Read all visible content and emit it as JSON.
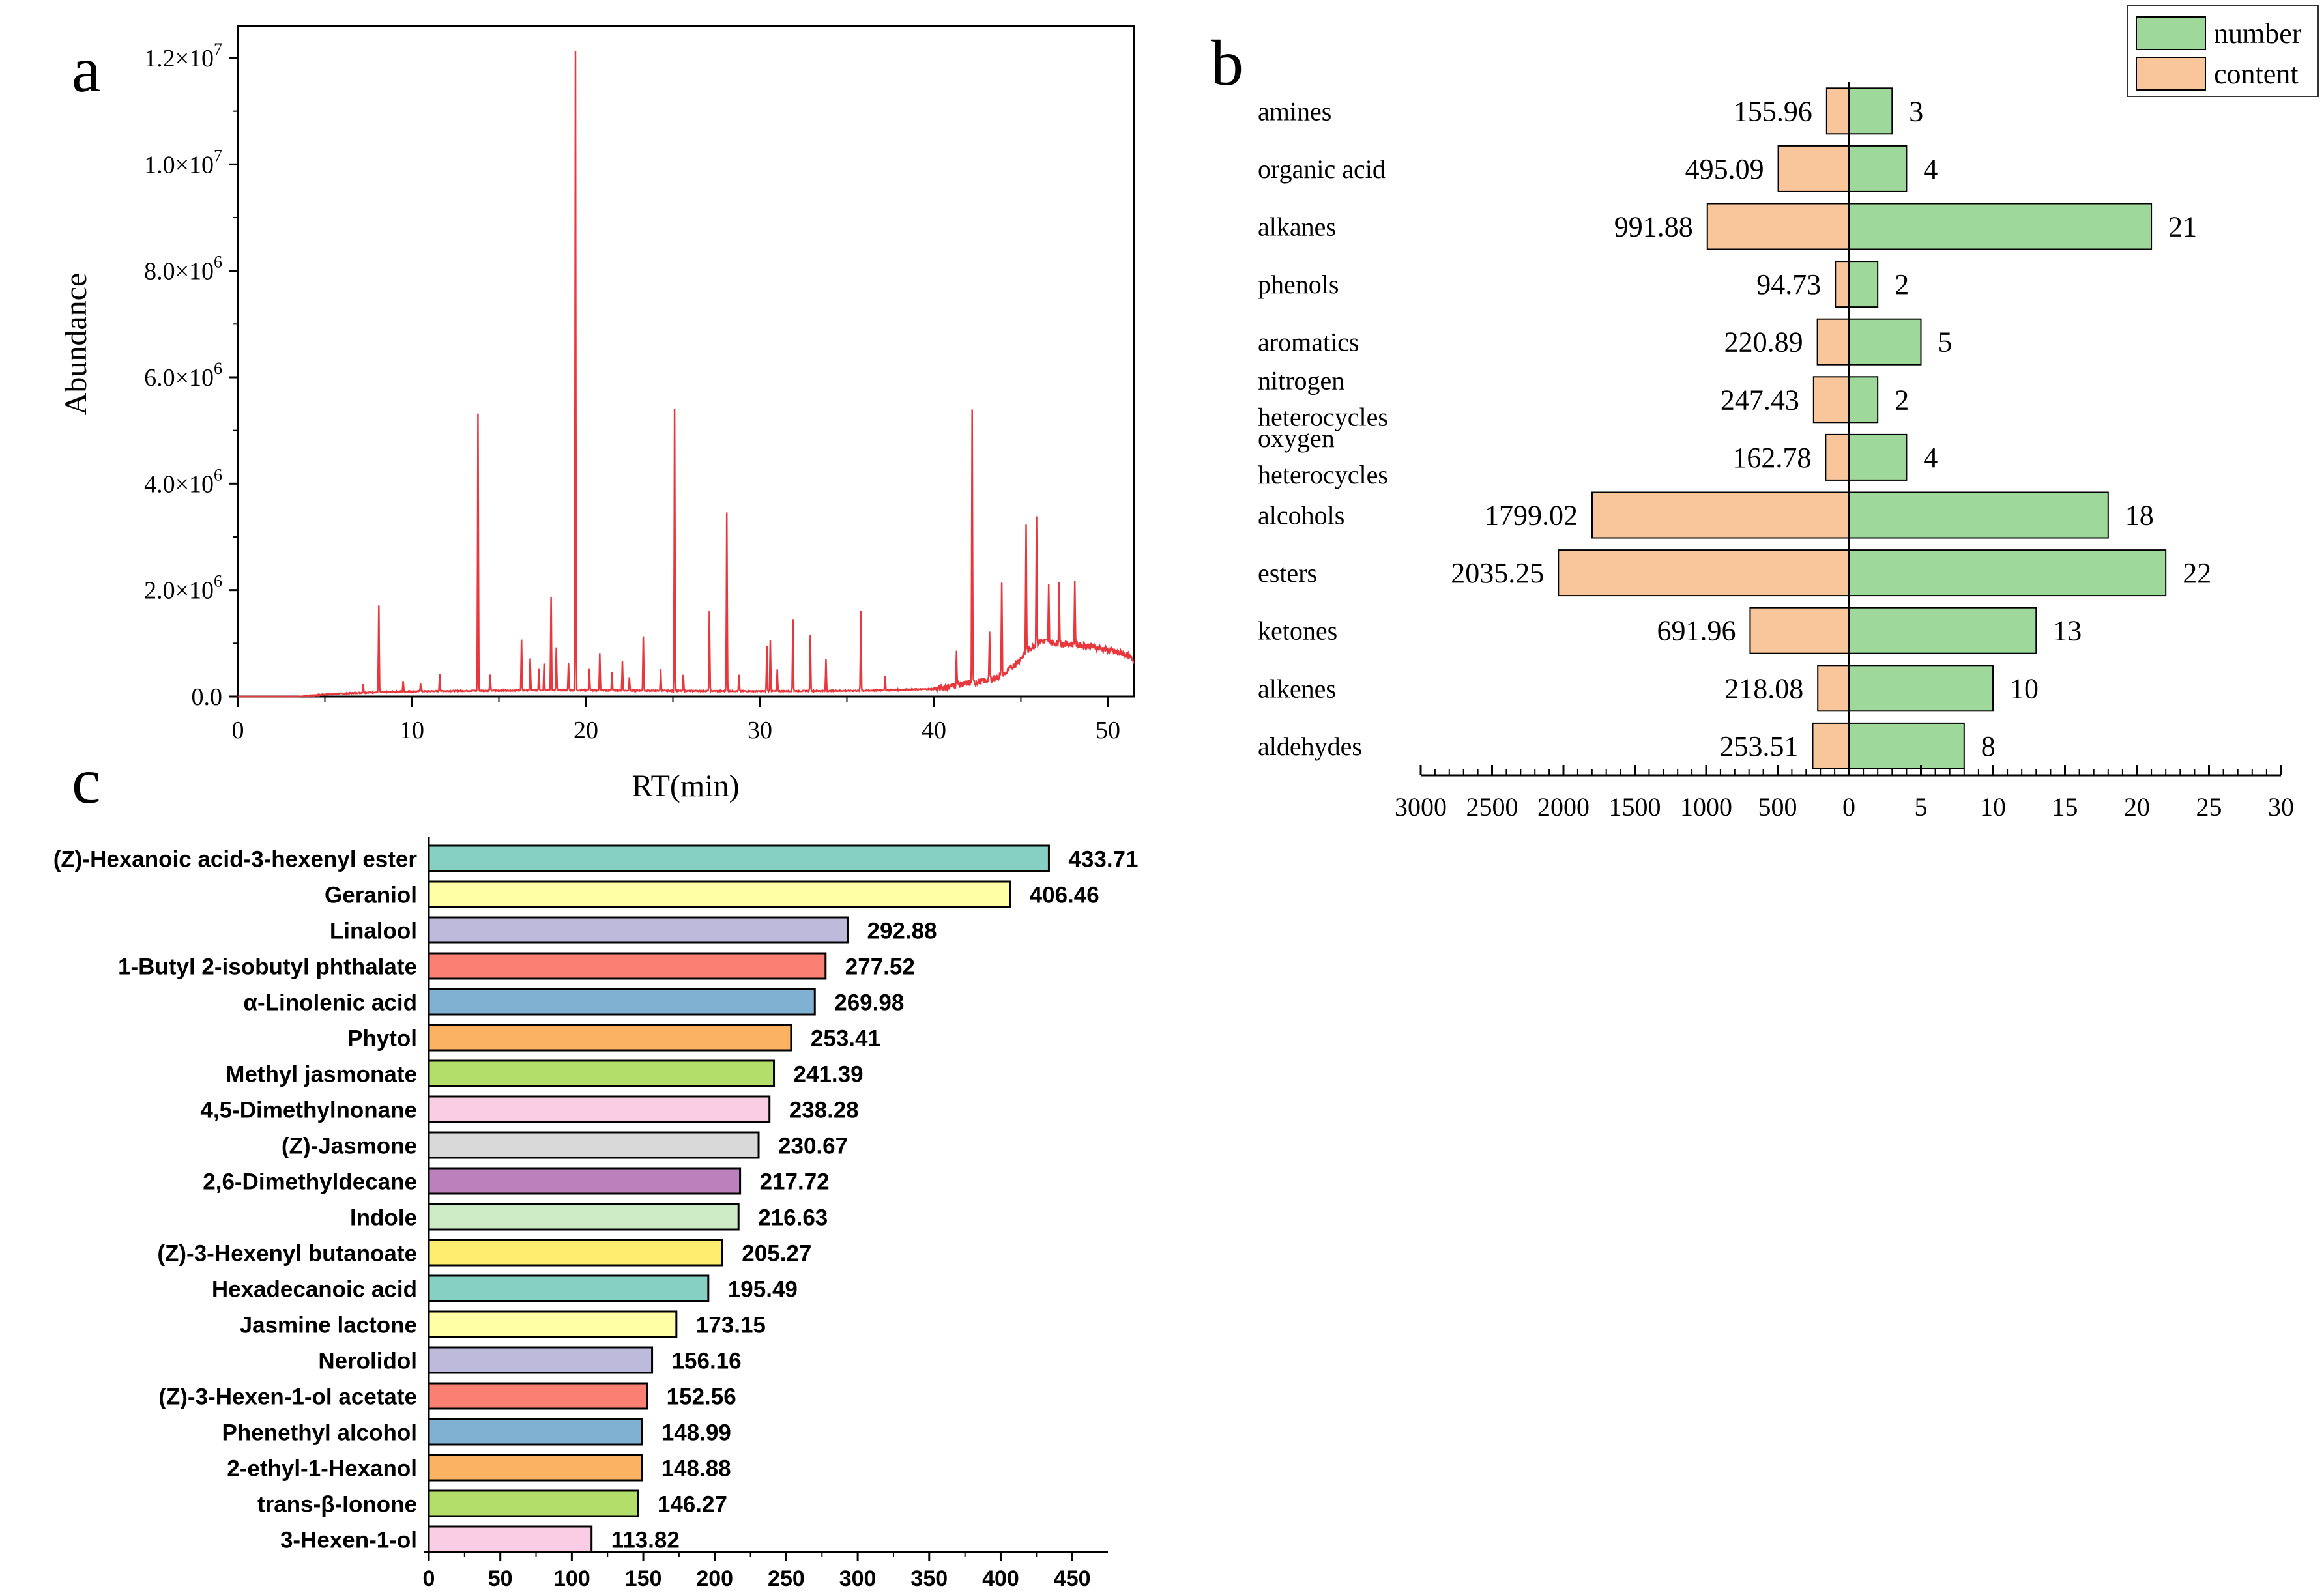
{
  "panel_labels": {
    "a": "a",
    "b": "b",
    "c": "c"
  },
  "chart_data": [
    {
      "id": "a",
      "type": "line",
      "xlabel": "RT(min)",
      "ylabel": "Abundance",
      "xlim": [
        0,
        51.5
      ],
      "ylim": [
        0,
        12600000
      ],
      "x_ticks": [
        0,
        10,
        20,
        30,
        40,
        50
      ],
      "x_tick_labels": [
        "0",
        "10",
        "20",
        "30",
        "40",
        "50"
      ],
      "y_ticks": [
        0,
        2000000,
        4000000,
        6000000,
        8000000,
        10000000,
        12000000
      ],
      "y_tick_labels": [
        {
          "base": "0.0",
          "exp": ""
        },
        {
          "base": "2.0×10",
          "exp": "6"
        },
        {
          "base": "4.0×10",
          "exp": "6"
        },
        {
          "base": "6.0×10",
          "exp": "6"
        },
        {
          "base": "8.0×10",
          "exp": "6"
        },
        {
          "base": "1.0×10",
          "exp": "7"
        },
        {
          "base": "1.2×10",
          "exp": "7"
        }
      ],
      "color": "#e8383d",
      "baseline_points": [
        [
          3.5,
          0
        ],
        [
          5,
          40000
        ],
        [
          7,
          70000
        ],
        [
          9,
          90000
        ],
        [
          11,
          100000
        ],
        [
          14,
          110000
        ],
        [
          18,
          120000
        ],
        [
          24,
          110000
        ],
        [
          30,
          100000
        ],
        [
          36,
          110000
        ],
        [
          40,
          140000
        ],
        [
          42,
          250000
        ],
        [
          43,
          300000
        ],
        [
          44,
          400000
        ],
        [
          44.8,
          650000
        ],
        [
          45.5,
          900000
        ],
        [
          46.2,
          1050000
        ],
        [
          47,
          1000000
        ],
        [
          48,
          980000
        ],
        [
          49,
          950000
        ],
        [
          50,
          870000
        ],
        [
          51,
          800000
        ],
        [
          51.5,
          680000
        ]
      ],
      "peaks": [
        [
          7.2,
          160000
        ],
        [
          8.1,
          1620000
        ],
        [
          9.5,
          200000
        ],
        [
          10.5,
          150000
        ],
        [
          11.6,
          320000
        ],
        [
          13.8,
          5200000
        ],
        [
          14.5,
          300000
        ],
        [
          16.3,
          950000
        ],
        [
          16.8,
          600000
        ],
        [
          17.3,
          400000
        ],
        [
          17.6,
          500000
        ],
        [
          18.0,
          1750000
        ],
        [
          18.3,
          800000
        ],
        [
          19.0,
          500000
        ],
        [
          19.4,
          12000000
        ],
        [
          20.2,
          400000
        ],
        [
          20.8,
          700000
        ],
        [
          21.5,
          350000
        ],
        [
          22.1,
          550000
        ],
        [
          22.5,
          250000
        ],
        [
          23.3,
          1020000
        ],
        [
          24.3,
          400000
        ],
        [
          25.1,
          5300000
        ],
        [
          25.6,
          300000
        ],
        [
          27.1,
          1500000
        ],
        [
          28.1,
          3350000
        ],
        [
          28.8,
          300000
        ],
        [
          30.4,
          850000
        ],
        [
          30.6,
          950000
        ],
        [
          31.0,
          400000
        ],
        [
          31.9,
          1350000
        ],
        [
          32.9,
          1050000
        ],
        [
          33.8,
          600000
        ],
        [
          35.8,
          1500000
        ],
        [
          37.2,
          250000
        ],
        [
          41.3,
          650000
        ],
        [
          42.2,
          5100000
        ],
        [
          43.2,
          900000
        ],
        [
          43.9,
          1750000
        ],
        [
          45.3,
          2400000
        ],
        [
          45.9,
          2400000
        ],
        [
          46.6,
          1050000
        ],
        [
          47.2,
          1150000
        ],
        [
          48.1,
          1200000
        ]
      ]
    },
    {
      "id": "b",
      "type": "bar",
      "orientation": "horizontal-butterfly",
      "categories": [
        "amines",
        "organic acid",
        "alkanes",
        "phenols",
        "aromatics",
        "nitrogen heterocycles",
        "oxygen heterocycles",
        "alcohols",
        "esters",
        "ketones",
        "alkenes",
        "aldehydes"
      ],
      "category_lines": [
        [
          "amines"
        ],
        [
          "organic acid"
        ],
        [
          "alkanes"
        ],
        [
          "phenols"
        ],
        [
          "aromatics"
        ],
        [
          "nitrogen",
          "heterocycles"
        ],
        [
          "oxygen",
          "heterocycles"
        ],
        [
          "alcohols"
        ],
        [
          "esters"
        ],
        [
          "ketones"
        ],
        [
          "alkenes"
        ],
        [
          "aldehydes"
        ]
      ],
      "series": [
        {
          "name": "content",
          "color": "#f9c69b",
          "values": [
            155.96,
            495.09,
            991.88,
            94.73,
            220.89,
            247.43,
            162.78,
            1799.02,
            2035.25,
            691.96,
            218.08,
            253.51
          ],
          "labels": [
            "155.96",
            "495.09",
            "991.88",
            "94.73",
            "220.89",
            "247.43",
            "162.78",
            "1799.02",
            "2035.25",
            "691.96",
            "218.08",
            "253.51"
          ]
        },
        {
          "name": "number",
          "color": "#9ed89a",
          "values": [
            3,
            4,
            21,
            2,
            5,
            2,
            4,
            18,
            22,
            13,
            10,
            8
          ],
          "labels": [
            "3",
            "4",
            "21",
            "2",
            "5",
            "2",
            "4",
            "18",
            "22",
            "13",
            "10",
            "8"
          ]
        }
      ],
      "left_ticks": [
        "3000",
        "2500",
        "2000",
        "1500",
        "1000",
        "500"
      ],
      "right_ticks": [
        "0",
        "5",
        "10",
        "15",
        "20",
        "25",
        "30"
      ],
      "left_max": 3000,
      "right_max": 30,
      "legend": [
        {
          "label": "number",
          "color": "#9ed89a"
        },
        {
          "label": "content",
          "color": "#f9c69b"
        }
      ],
      "legend_position": "top-right"
    },
    {
      "id": "c",
      "type": "bar",
      "orientation": "horizontal",
      "categories": [
        "(Z)-Hexanoic acid-3-hexenyl ester",
        "Geraniol",
        "Linalool",
        "1-Butyl 2-isobutyl phthalate",
        "α-Linolenic acid",
        "Phytol",
        "Methyl jasmonate",
        "4,5-Dimethylnonane",
        "(Z)-Jasmone",
        "2,6-Dimethyldecane",
        "Indole",
        "(Z)-3-Hexenyl butanoate",
        "Hexadecanoic acid",
        "Jasmine lactone",
        "Nerolidol",
        "(Z)-3-Hexen-1-ol acetate",
        "Phenethyl alcohol",
        "2-ethyl-1-Hexanol",
        "trans-β-Ionone",
        "3-Hexen-1-ol"
      ],
      "values": [
        433.71,
        406.46,
        292.88,
        277.52,
        269.98,
        253.41,
        241.39,
        238.28,
        230.67,
        217.72,
        216.63,
        205.27,
        195.49,
        173.15,
        156.16,
        152.56,
        148.99,
        148.88,
        146.27,
        113.82
      ],
      "value_labels": [
        "433.71",
        "406.46",
        "292.88",
        "277.52",
        "269.98",
        "253.41",
        "241.39",
        "238.28",
        "230.67",
        "217.72",
        "216.63",
        "205.27",
        "195.49",
        "173.15",
        "156.16",
        "152.56",
        "148.99",
        "148.88",
        "146.27",
        "113.82"
      ],
      "colors": [
        "#86d0c3",
        "#ffffa6",
        "#bdbadb",
        "#f98072",
        "#80b1d3",
        "#fbb263",
        "#b2de69",
        "#fbcde5",
        "#d9d9d9",
        "#bc80bc",
        "#cdebc5",
        "#ffed6f",
        "#86d0c3",
        "#ffffa6",
        "#bdbadb",
        "#f98072",
        "#80b1d3",
        "#fbb263",
        "#b2de69",
        "#fbcde5"
      ],
      "x_ticks": [
        0,
        50,
        100,
        150,
        200,
        250,
        300,
        350,
        400,
        450
      ],
      "x_tick_labels": [
        "0",
        "50",
        "100",
        "150",
        "200",
        "250",
        "300",
        "350",
        "400",
        "450"
      ],
      "xlim": [
        0,
        475
      ]
    }
  ]
}
